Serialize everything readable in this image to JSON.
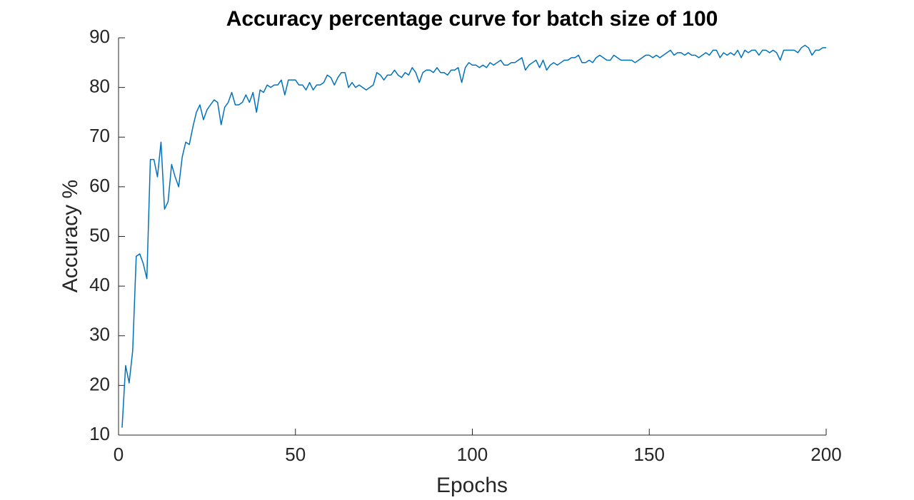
{
  "chart_data": {
    "type": "line",
    "title": "Accuracy percentage curve for batch size of 100",
    "xlabel": "Epochs",
    "ylabel": "Accuracy %",
    "xlim": [
      0,
      200
    ],
    "xticks": [
      0,
      50,
      100,
      150,
      200
    ],
    "ylim": [
      10,
      90
    ],
    "yticks": [
      10,
      20,
      30,
      40,
      50,
      60,
      70,
      80,
      90
    ],
    "grid": false,
    "x": [
      1,
      2,
      3,
      4,
      5,
      6,
      7,
      8,
      9,
      10,
      11,
      12,
      13,
      14,
      15,
      16,
      17,
      18,
      19,
      20,
      21,
      22,
      23,
      24,
      25,
      26,
      27,
      28,
      29,
      30,
      31,
      32,
      33,
      34,
      35,
      36,
      37,
      38,
      39,
      40,
      41,
      42,
      43,
      44,
      45,
      46,
      47,
      48,
      49,
      50,
      51,
      52,
      53,
      54,
      55,
      56,
      57,
      58,
      59,
      60,
      61,
      62,
      63,
      64,
      65,
      66,
      67,
      68,
      69,
      70,
      71,
      72,
      73,
      74,
      75,
      76,
      77,
      78,
      79,
      80,
      81,
      82,
      83,
      84,
      85,
      86,
      87,
      88,
      89,
      90,
      91,
      92,
      93,
      94,
      95,
      96,
      97,
      98,
      99,
      100,
      101,
      102,
      103,
      104,
      105,
      106,
      107,
      108,
      109,
      110,
      111,
      112,
      113,
      114,
      115,
      116,
      117,
      118,
      119,
      120,
      121,
      122,
      123,
      124,
      125,
      126,
      127,
      128,
      129,
      130,
      131,
      132,
      133,
      134,
      135,
      136,
      137,
      138,
      139,
      140,
      141,
      142,
      143,
      144,
      145,
      146,
      147,
      148,
      149,
      150,
      151,
      152,
      153,
      154,
      155,
      156,
      157,
      158,
      159,
      160,
      161,
      162,
      163,
      164,
      165,
      166,
      167,
      168,
      169,
      170,
      171,
      172,
      173,
      174,
      175,
      176,
      177,
      178,
      179,
      180,
      181,
      182,
      183,
      184,
      185,
      186,
      187,
      188,
      189,
      190,
      191,
      192,
      193,
      194,
      195,
      196,
      197,
      198,
      199,
      200
    ],
    "series": [
      {
        "color": "#0072bd",
        "values": [
          11.5,
          24,
          20.5,
          27,
          46,
          46.5,
          44.5,
          41.5,
          65.5,
          65.5,
          62,
          69,
          55.5,
          57,
          64.5,
          62,
          60,
          66,
          69,
          68.5,
          72,
          75,
          76.5,
          73.5,
          75.5,
          76.5,
          77.5,
          77,
          72.5,
          76,
          77,
          79,
          76.5,
          76.5,
          77,
          78.5,
          77,
          79,
          75,
          79.5,
          79,
          80.5,
          80,
          80.5,
          80.5,
          81.5,
          78.5,
          81.5,
          81.5,
          81.5,
          80.5,
          80.5,
          79.5,
          81,
          79.5,
          80.5,
          80.5,
          81,
          82.5,
          82,
          80.5,
          82,
          83,
          83,
          80,
          81,
          80,
          80.5,
          80,
          79.5,
          80,
          80.5,
          83,
          82.5,
          81.5,
          82.5,
          82.5,
          83.5,
          82.5,
          82,
          83,
          82.5,
          84,
          83,
          81,
          83,
          83.5,
          83.5,
          83,
          84,
          83,
          83,
          82.5,
          83.5,
          83.5,
          84,
          81,
          84,
          85,
          84.5,
          84.5,
          84,
          84.5,
          84,
          85,
          84.5,
          85,
          85.5,
          84.5,
          84.5,
          85,
          85,
          85.5,
          86,
          83.5,
          84.5,
          85,
          85.5,
          84,
          85.5,
          83.5,
          84.5,
          85,
          84.5,
          85,
          85.5,
          85.5,
          86,
          86,
          86.5,
          85,
          85,
          85.5,
          85,
          86,
          86.5,
          86,
          85.5,
          85.5,
          86.5,
          86,
          85.5,
          85.5,
          85.5,
          85.5,
          85,
          85.5,
          86,
          86.5,
          86.5,
          86,
          86.5,
          86,
          86.5,
          87,
          87.5,
          86.5,
          87,
          87,
          86.5,
          87,
          86.5,
          86.5,
          86,
          86.5,
          87,
          86.5,
          87.5,
          87.5,
          86,
          87,
          86.5,
          87,
          86.5,
          87.5,
          86,
          87.5,
          87,
          87.5,
          87.5,
          86.5,
          87.5,
          87.5,
          87,
          87.5,
          87,
          85.5,
          87.5,
          87.5,
          87.5,
          87.5,
          87,
          88,
          88.5,
          88,
          86.5,
          87.5,
          87.5,
          88,
          88
        ]
      }
    ]
  }
}
